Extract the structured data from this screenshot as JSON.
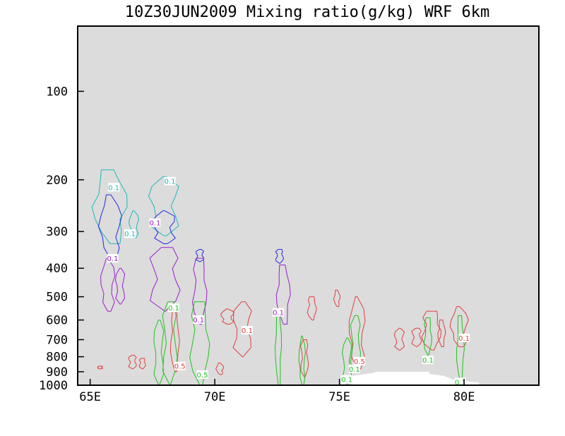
{
  "chart_data": {
    "type": "contour",
    "title": "10Z30JUN2009 Mixing ratio(g/kg)  WRF 6km",
    "xlabel": "",
    "ylabel": "",
    "x_axis": {
      "range": [
        64.5,
        83
      ],
      "ticks": [
        {
          "value": 65,
          "label": "65E"
        },
        {
          "value": 70,
          "label": "70E"
        },
        {
          "value": 75,
          "label": "75E"
        },
        {
          "value": 80,
          "label": "80E"
        }
      ]
    },
    "y_axis": {
      "scale": "log",
      "inverted": true,
      "range": [
        1000,
        60
      ],
      "ticks": [
        {
          "value": 100,
          "label": "100"
        },
        {
          "value": 200,
          "label": "200"
        },
        {
          "value": 300,
          "label": "300"
        },
        {
          "value": 400,
          "label": "400"
        },
        {
          "value": 500,
          "label": "500"
        },
        {
          "value": 600,
          "label": "600"
        },
        {
          "value": 700,
          "label": "700"
        },
        {
          "value": 800,
          "label": "800"
        },
        {
          "value": 900,
          "label": "900"
        },
        {
          "value": 1000,
          "label": "1000"
        }
      ]
    },
    "background": "#dcdcdc",
    "terrain_color": "#ffffff",
    "terrain": [
      [
        75.5,
        1000
      ],
      [
        75.5,
        930
      ],
      [
        76.3,
        910
      ],
      [
        76.5,
        900
      ],
      [
        78.6,
        900
      ],
      [
        78.6,
        915
      ],
      [
        79.2,
        930
      ],
      [
        79.6,
        960
      ],
      [
        80.6,
        980
      ],
      [
        80.6,
        1000
      ]
    ],
    "series": [
      {
        "color": "#20b8b8",
        "contours": [
          {
            "lon": 65.8,
            "p_bottom": 330,
            "p_top": 185,
            "width": 0.55,
            "label": "0.1",
            "label_lon": 65.95,
            "label_p": 212
          },
          {
            "lon": 66.75,
            "p_bottom": 315,
            "p_top": 255,
            "width": 0.15,
            "label": "0.1",
            "label_lon": 66.6,
            "label_p": 305
          },
          {
            "lon": 67.95,
            "p_bottom": 310,
            "p_top": 195,
            "width": 0.45,
            "label": "0.1",
            "label_lon": 68.2,
            "label_p": 202
          }
        ]
      },
      {
        "color": "#2626e0",
        "contours": [
          {
            "lon": 65.8,
            "p_bottom": 370,
            "p_top": 225,
            "width": 0.35
          },
          {
            "lon": 67.95,
            "p_bottom": 330,
            "p_top": 255,
            "width": 0.35
          },
          {
            "lon": 69.4,
            "p_bottom": 380,
            "p_top": 345,
            "width": 0.12
          },
          {
            "lon": 72.6,
            "p_bottom": 385,
            "p_top": 345,
            "width": 0.12
          }
        ]
      },
      {
        "color": "#9a1ecc",
        "contours": [
          {
            "lon": 65.7,
            "p_bottom": 560,
            "p_top": 370,
            "width": 0.22,
            "label": "0.1",
            "label_lon": 65.9,
            "label_p": 370
          },
          {
            "lon": 66.2,
            "p_bottom": 530,
            "p_top": 400,
            "width": 0.14
          },
          {
            "lon": 68.0,
            "p_bottom": 560,
            "p_top": 340,
            "width": 0.45,
            "label": "0.1",
            "label_lon": 67.6,
            "label_p": 280
          },
          {
            "lon": 69.4,
            "p_bottom": 620,
            "p_top": 370,
            "width": 0.22,
            "label": "0.1",
            "label_lon": 69.35,
            "label_p": 598
          },
          {
            "lon": 72.75,
            "p_bottom": 620,
            "p_top": 390,
            "width": 0.22,
            "label": "0.1",
            "label_lon": 72.55,
            "label_p": 565
          }
        ]
      },
      {
        "color": "#e04040",
        "contours": [
          {
            "lon": 65.4,
            "p_bottom": 880,
            "p_top": 860,
            "width": 0.08
          },
          {
            "lon": 66.7,
            "p_bottom": 880,
            "p_top": 790,
            "width": 0.12
          },
          {
            "lon": 67.1,
            "p_bottom": 880,
            "p_top": 810,
            "width": 0.1
          },
          {
            "lon": 68.4,
            "p_bottom": 900,
            "p_top": 560,
            "width": 0.14,
            "label": "0.5",
            "label_lon": 68.6,
            "label_p": 860
          },
          {
            "lon": 70.2,
            "p_bottom": 920,
            "p_top": 840,
            "width": 0.12
          },
          {
            "lon": 70.5,
            "p_bottom": 620,
            "p_top": 550,
            "width": 0.2
          },
          {
            "lon": 71.1,
            "p_bottom": 800,
            "p_top": 520,
            "width": 0.28,
            "label": "0.1",
            "label_lon": 71.3,
            "label_p": 650
          },
          {
            "lon": 73.6,
            "p_bottom": 940,
            "p_top": 700,
            "width": 0.12
          },
          {
            "lon": 73.9,
            "p_bottom": 600,
            "p_top": 500,
            "width": 0.14
          },
          {
            "lon": 74.9,
            "p_bottom": 540,
            "p_top": 475,
            "width": 0.1
          },
          {
            "lon": 75.7,
            "p_bottom": 880,
            "p_top": 500,
            "width": 0.25,
            "label": "0.5",
            "label_lon": 75.8,
            "label_p": 828
          },
          {
            "lon": 77.4,
            "p_bottom": 760,
            "p_top": 640,
            "width": 0.15
          },
          {
            "lon": 78.1,
            "p_bottom": 740,
            "p_top": 640,
            "width": 0.15
          },
          {
            "lon": 78.7,
            "p_bottom": 760,
            "p_top": 560,
            "width": 0.3
          },
          {
            "lon": 79.1,
            "p_bottom": 740,
            "p_top": 600,
            "width": 0.12
          },
          {
            "lon": 79.8,
            "p_bottom": 740,
            "p_top": 540,
            "width": 0.28,
            "label": "0.1",
            "label_lon": 80.0,
            "label_p": 690
          }
        ]
      },
      {
        "color": "#20c020",
        "contours": [
          {
            "lon": 67.75,
            "p_bottom": 1000,
            "p_top": 600,
            "width": 0.15
          },
          {
            "lon": 68.2,
            "p_bottom": 1000,
            "p_top": 520,
            "width": 0.22,
            "label": "0.1",
            "label_lon": 68.35,
            "label_p": 545
          },
          {
            "lon": 69.4,
            "p_bottom": 1000,
            "p_top": 520,
            "width": 0.3,
            "label": "0.5",
            "label_lon": 69.5,
            "label_p": 920
          },
          {
            "lon": 72.55,
            "p_bottom": 1000,
            "p_top": 550,
            "width": 0.1
          },
          {
            "lon": 73.5,
            "p_bottom": 1000,
            "p_top": 680,
            "width": 0.1
          },
          {
            "lon": 75.3,
            "p_bottom": 990,
            "p_top": 690,
            "width": 0.14,
            "label": "0.1",
            "label_lon": 75.3,
            "label_p": 955
          },
          {
            "lon": 75.65,
            "p_bottom": 900,
            "p_top": 580,
            "width": 0.15,
            "label": "0.1",
            "label_lon": 75.6,
            "label_p": 880
          },
          {
            "lon": 78.55,
            "p_bottom": 790,
            "p_top": 590,
            "width": 0.12,
            "label": "0.1",
            "label_lon": 78.55,
            "label_p": 820
          },
          {
            "lon": 79.85,
            "p_bottom": 980,
            "p_top": 580,
            "width": 0.12,
            "label": "0.1",
            "label_lon": 79.85,
            "label_p": 975
          }
        ]
      }
    ]
  }
}
